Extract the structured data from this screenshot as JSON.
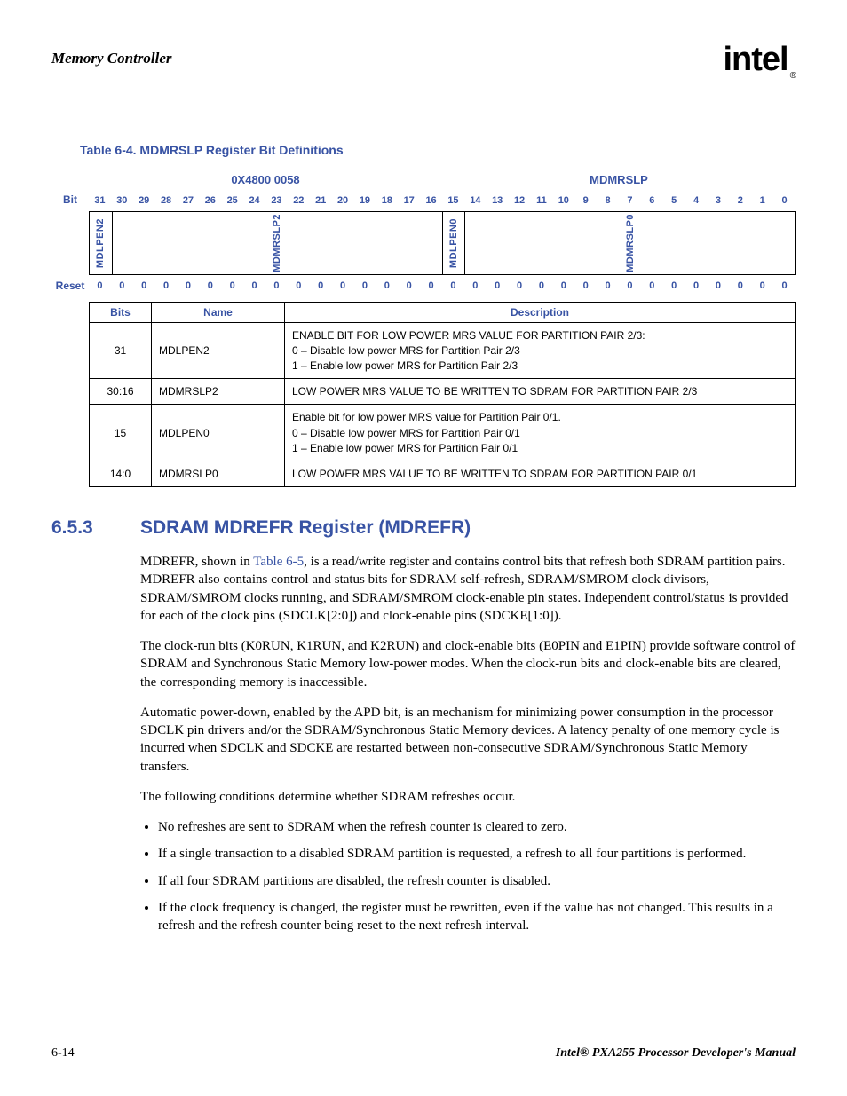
{
  "colors": {
    "accent": "#3853a4",
    "text": "#000000",
    "bg": "#ffffff",
    "border": "#000000"
  },
  "header": {
    "chapter": "Memory Controller",
    "logo_text": "intel",
    "logo_tm": "®"
  },
  "table_caption": "Table 6-4. MDMRSLP Register Bit Definitions",
  "reg": {
    "address": "0X4800 0058",
    "name": "MDMRSLP",
    "bit_label": "Bit",
    "reset_label": "Reset",
    "bits": [
      "31",
      "30",
      "29",
      "28",
      "27",
      "26",
      "25",
      "24",
      "23",
      "22",
      "21",
      "20",
      "19",
      "18",
      "17",
      "16",
      "15",
      "14",
      "13",
      "12",
      "11",
      "10",
      "9",
      "8",
      "7",
      "6",
      "5",
      "4",
      "3",
      "2",
      "1",
      "0"
    ],
    "fields": [
      {
        "name": "MDLPEN2",
        "span": 1
      },
      {
        "name": "MDMRSLP2",
        "span": 15
      },
      {
        "name": "MDLPEN0",
        "span": 1
      },
      {
        "name": "MDMRSLP0",
        "span": 15
      }
    ],
    "reset_values": [
      "0",
      "0",
      "0",
      "0",
      "0",
      "0",
      "0",
      "0",
      "0",
      "0",
      "0",
      "0",
      "0",
      "0",
      "0",
      "0",
      "0",
      "0",
      "0",
      "0",
      "0",
      "0",
      "0",
      "0",
      "0",
      "0",
      "0",
      "0",
      "0",
      "0",
      "0",
      "0"
    ]
  },
  "desc_table": {
    "headers": {
      "bits": "Bits",
      "name": "Name",
      "desc": "Description"
    },
    "rows": [
      {
        "bits": "31",
        "name": "MDLPEN2",
        "desc": [
          "ENABLE BIT FOR LOW POWER MRS VALUE FOR PARTITION PAIR 2/3:",
          "0 –   Disable low power MRS for Partition Pair 2/3",
          "1 –   Enable low power MRS for Partition Pair 2/3"
        ]
      },
      {
        "bits": "30:16",
        "name": "MDMRSLP2",
        "desc": [
          "LOW POWER MRS VALUE TO BE WRITTEN TO SDRAM FOR PARTITION PAIR 2/3"
        ]
      },
      {
        "bits": "15",
        "name": "MDLPEN0",
        "desc": [
          "Enable bit for low power MRS value for Partition Pair 0/1.",
          "0 –   Disable low power MRS for Partition Pair 0/1",
          "1 –   Enable low power MRS for Partition Pair 0/1"
        ]
      },
      {
        "bits": "14:0",
        "name": "MDMRSLP0",
        "desc": [
          "LOW POWER MRS VALUE TO BE WRITTEN TO SDRAM FOR PARTITION PAIR 0/1"
        ]
      }
    ]
  },
  "section": {
    "num": "6.5.3",
    "title": "SDRAM MDREFR Register (MDREFR)"
  },
  "paragraphs": {
    "p1_a": "MDREFR, shown in ",
    "p1_xref": "Table 6-5",
    "p1_b": ", is a read/write register and contains control bits that refresh both SDRAM partition pairs. MDREFR also contains control and status bits for SDRAM self-refresh, SDRAM/SMROM clock divisors, SDRAM/SMROM clocks running, and SDRAM/SMROM clock-enable pin states. Independent control/status is provided for each of the clock pins (SDCLK[2:0]) and clock-enable pins (SDCKE[1:0]).",
    "p2": "The clock-run bits (K0RUN, K1RUN, and K2RUN) and clock-enable bits (E0PIN and E1PIN) provide software control of SDRAM and Synchronous Static Memory low-power modes. When the clock-run bits and clock-enable bits are cleared, the corresponding memory is inaccessible.",
    "p3": "Automatic power-down, enabled by the APD bit, is an mechanism for minimizing power consumption in the processor SDCLK pin drivers and/or the SDRAM/Synchronous Static Memory devices. A latency penalty of one memory cycle is incurred when SDCLK and SDCKE are restarted between non-consecutive SDRAM/Synchronous Static Memory transfers.",
    "p4": "The following conditions determine whether SDRAM refreshes occur."
  },
  "bullets": [
    "No refreshes are sent to SDRAM when the refresh counter is cleared to zero.",
    "If a single transaction to a disabled SDRAM partition is requested, a refresh to all four partitions is performed.",
    "If all four SDRAM partitions are disabled, the refresh counter is disabled.",
    "If the clock frequency is changed, the register must be rewritten, even if the value has not changed. This results in a refresh and the refresh counter being reset to the next refresh interval."
  ],
  "footer": {
    "page": "6-14",
    "doc": "Intel® PXA255 Processor Developer's Manual"
  }
}
